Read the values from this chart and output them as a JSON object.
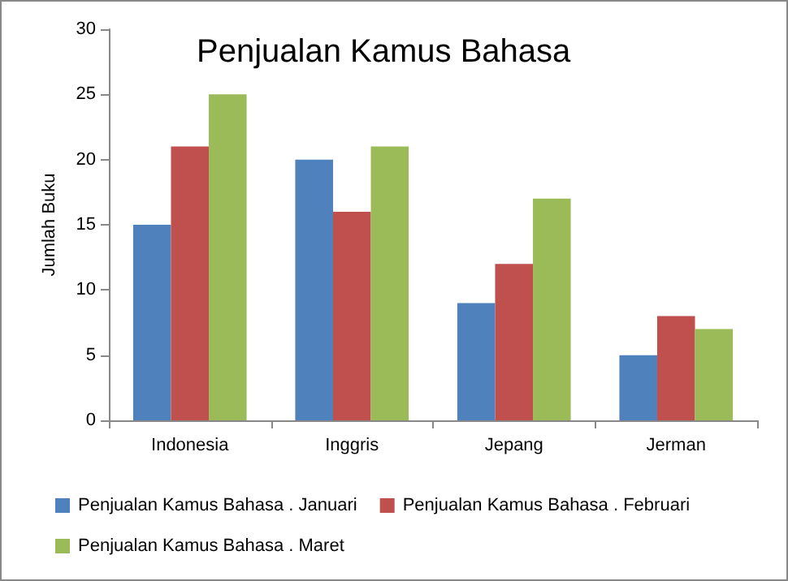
{
  "chart_data": {
    "type": "bar",
    "title": "Penjualan Kamus Bahasa",
    "ylabel": "Jumlah Buku",
    "categories": [
      "Indonesia",
      "Inggris",
      "Jepang",
      "Jerman"
    ],
    "series": [
      {
        "name": "Penjualan Kamus Bahasa . Januari",
        "color": "#4f81bd",
        "values": [
          15,
          20,
          9,
          5
        ]
      },
      {
        "name": "Penjualan Kamus Bahasa . Februari",
        "color": "#c0504d",
        "values": [
          21,
          16,
          12,
          8
        ]
      },
      {
        "name": "Penjualan Kamus Bahasa . Maret",
        "color": "#9bbb59",
        "values": [
          25,
          21,
          17,
          7
        ]
      }
    ],
    "ylim": [
      0,
      30
    ],
    "yticks": [
      0,
      5,
      10,
      15,
      20,
      25,
      30
    ],
    "grid": false,
    "legend": "bottom"
  }
}
